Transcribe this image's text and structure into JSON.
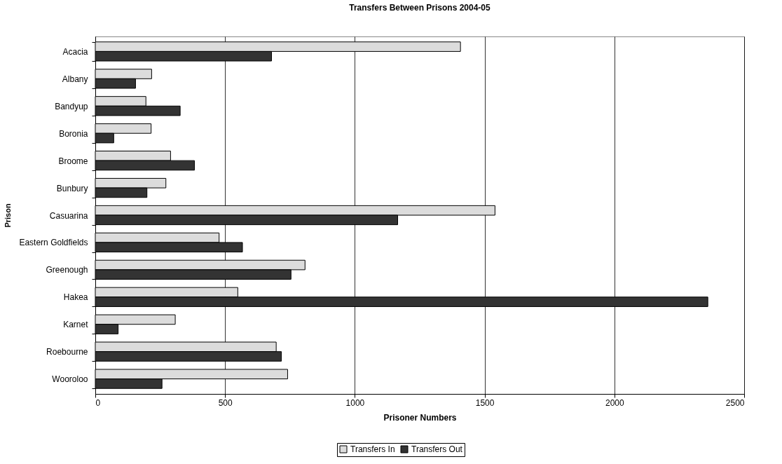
{
  "chart_data": {
    "type": "bar",
    "orientation": "horizontal",
    "title": "Transfers Between Prisons 2004-05",
    "xlabel": "Prisoner Numbers",
    "ylabel": "Prison",
    "categories": [
      "Acacia",
      "Albany",
      "Bandyup",
      "Boronia",
      "Broome",
      "Bunbury",
      "Casuarina",
      "Eastern Goldfields",
      "Greenough",
      "Hakea",
      "Karnet",
      "Roebourne",
      "Wooroloo"
    ],
    "series": [
      {
        "name": "Transfers In",
        "color": "#dcdcdc",
        "values": [
          1407,
          217,
          195,
          215,
          290,
          272,
          1540,
          477,
          808,
          549,
          308,
          697,
          741
        ]
      },
      {
        "name": "Transfers Out",
        "color": "#333333",
        "values": [
          679,
          155,
          327,
          71,
          382,
          199,
          1165,
          567,
          754,
          2360,
          88,
          717,
          257
        ]
      }
    ],
    "xlim": [
      0,
      2500
    ],
    "xticks": [
      0,
      500,
      1000,
      1500,
      2000,
      2500
    ],
    "grid": "x",
    "legend": "bottom"
  }
}
